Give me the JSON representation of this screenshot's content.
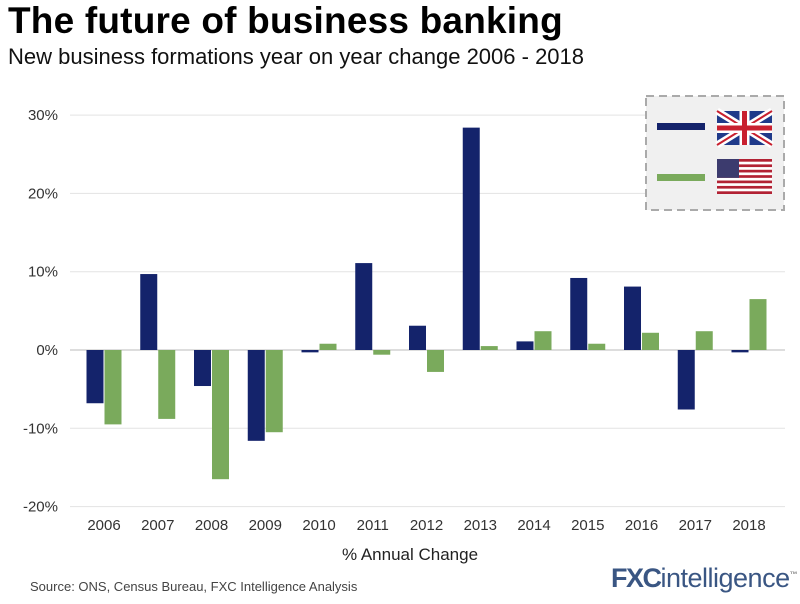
{
  "title": "The future of business banking",
  "subtitle": "New business formations year on year change 2006 - 2018",
  "source": "Source: ONS, Census Bureau, FXC Intelligence Analysis",
  "logo": {
    "bold": "FXC",
    "rest": "intelligence",
    "tm": "™"
  },
  "chart_data": {
    "type": "bar",
    "title": "New business formations year on year change 2006 - 2018",
    "xlabel": "% Annual Change",
    "ylabel": "",
    "ylim": [
      -20,
      30
    ],
    "yticks": [
      30,
      20,
      10,
      0,
      -10,
      -20
    ],
    "ytick_labels": [
      "30%",
      "20%",
      "10%",
      "0%",
      "-10%",
      "-20%"
    ],
    "grid": true,
    "legend_placement": "top-right",
    "categories": [
      "2006",
      "2007",
      "2008",
      "2009",
      "2010",
      "2011",
      "2012",
      "2013",
      "2014",
      "2015",
      "2016",
      "2017",
      "2018"
    ],
    "series": [
      {
        "flag_icon": "uk-flag-icon",
        "color": "#14236b",
        "values": [
          -6.8,
          9.7,
          -4.6,
          -11.6,
          -0.3,
          11.1,
          3.1,
          28.4,
          1.1,
          9.2,
          8.1,
          -7.6,
          -0.3
        ]
      },
      {
        "flag_icon": "us-flag-icon",
        "color": "#7aaa5c",
        "values": [
          -9.5,
          -8.8,
          -16.5,
          -10.5,
          0.8,
          -0.6,
          -2.8,
          0.5,
          2.4,
          0.8,
          2.2,
          2.4,
          6.5
        ]
      }
    ]
  }
}
